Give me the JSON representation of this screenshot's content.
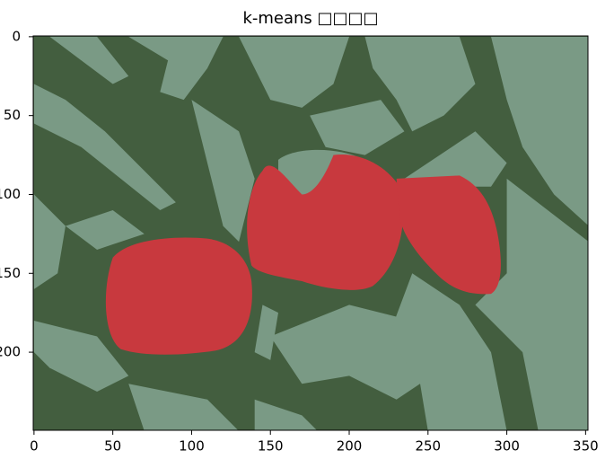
{
  "chart_data": {
    "type": "imshow",
    "title": "k-means □□□□",
    "xlim": [
      -0.5,
      351.5
    ],
    "ylim": [
      249.5,
      -0.5
    ],
    "xticks": [
      0,
      50,
      100,
      150,
      200,
      250,
      300,
      350
    ],
    "yticks": [
      0,
      50,
      100,
      150,
      200
    ]
  }
}
